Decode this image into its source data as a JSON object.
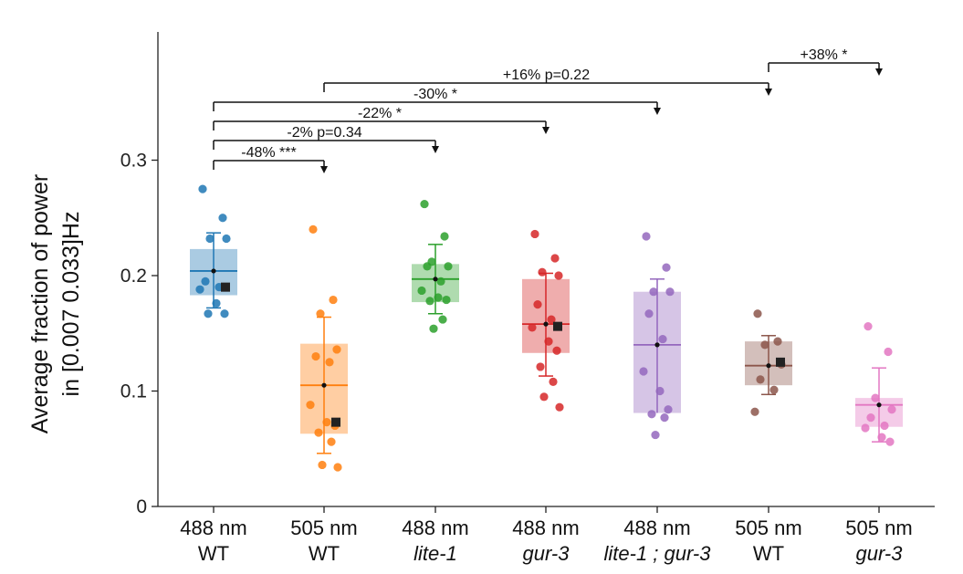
{
  "chart_data": {
    "type": "box",
    "title": "",
    "ylabel_line1": "Average fraction of power",
    "ylabel_line2": "in [0.007 0.033]Hz",
    "xlabel": "",
    "ylim": [
      0,
      0.4
    ],
    "yticks": [
      {
        "value": 0,
        "label": "0"
      },
      {
        "value": 0.1,
        "label": "0.1"
      },
      {
        "value": 0.2,
        "label": "0.2"
      },
      {
        "value": 0.3,
        "label": "0.3"
      }
    ],
    "groups": [
      {
        "label_top": "488 nm",
        "label_bottom": "WT",
        "italic": false,
        "color": "#1f77b4",
        "box_low": 0.183,
        "box_high": 0.223,
        "median": 0.204,
        "mean": 0.204,
        "whisker_low": 0.172,
        "whisker_high": 0.237,
        "square": 0.19,
        "points": [
          0.275,
          0.25,
          0.232,
          0.232,
          0.195,
          0.19,
          0.188,
          0.176,
          0.167,
          0.167
        ]
      },
      {
        "label_top": "505 nm",
        "label_bottom": "WT",
        "italic": false,
        "color": "#ff7f0e",
        "box_low": 0.063,
        "box_high": 0.141,
        "median": 0.105,
        "mean": 0.105,
        "whisker_low": 0.046,
        "whisker_high": 0.164,
        "square": 0.073,
        "points": [
          0.24,
          0.179,
          0.167,
          0.136,
          0.13,
          0.125,
          0.088,
          0.073,
          0.07,
          0.064,
          0.056,
          0.036,
          0.034
        ]
      },
      {
        "label_top": "488 nm",
        "label_bottom": "lite-1",
        "italic": true,
        "color": "#2ca02c",
        "box_low": 0.177,
        "box_high": 0.21,
        "median": 0.197,
        "mean": 0.197,
        "whisker_low": 0.167,
        "whisker_high": 0.227,
        "square": null,
        "points": [
          0.262,
          0.234,
          0.212,
          0.208,
          0.208,
          0.195,
          0.187,
          0.181,
          0.179,
          0.178,
          0.162,
          0.154
        ]
      },
      {
        "label_top": "488 nm",
        "label_bottom": "gur-3",
        "italic": true,
        "color": "#d62728",
        "box_low": 0.133,
        "box_high": 0.197,
        "median": 0.158,
        "mean": 0.158,
        "whisker_low": 0.113,
        "whisker_high": 0.202,
        "square": 0.156,
        "points": [
          0.236,
          0.215,
          0.203,
          0.2,
          0.175,
          0.162,
          0.155,
          0.143,
          0.135,
          0.121,
          0.108,
          0.095,
          0.086
        ]
      },
      {
        "label_top": "488 nm",
        "label_bottom": "lite-1 ; gur-3",
        "italic": true,
        "color": "#9467bd",
        "box_low": 0.081,
        "box_high": 0.186,
        "median": 0.14,
        "mean": 0.14,
        "whisker_low": null,
        "whisker_high": 0.197,
        "square": null,
        "points": [
          0.234,
          0.207,
          0.186,
          0.186,
          0.167,
          0.145,
          0.117,
          0.1,
          0.084,
          0.08,
          0.077,
          0.062
        ]
      },
      {
        "label_top": "505 nm",
        "label_bottom": "WT",
        "italic": false,
        "color": "#8c564b",
        "box_low": 0.105,
        "box_high": 0.143,
        "median": 0.122,
        "mean": 0.122,
        "whisker_low": 0.097,
        "whisker_high": 0.148,
        "square": 0.125,
        "points": [
          0.167,
          0.143,
          0.14,
          0.123,
          0.11,
          0.101,
          0.082
        ]
      },
      {
        "label_top": "505 nm",
        "label_bottom": "gur-3",
        "italic": true,
        "color": "#e377c2",
        "box_low": 0.069,
        "box_high": 0.094,
        "median": 0.088,
        "mean": 0.088,
        "whisker_low": 0.056,
        "whisker_high": 0.12,
        "square": null,
        "points": [
          0.156,
          0.134,
          0.094,
          0.084,
          0.077,
          0.07,
          0.068,
          0.06,
          0.056
        ]
      }
    ],
    "annotations": [
      {
        "text": "-48% ***",
        "from": 0,
        "to": 1,
        "level": 0
      },
      {
        "text": "-2% p=0.34",
        "from": 0,
        "to": 2,
        "level": 1
      },
      {
        "text": "-22% *",
        "from": 0,
        "to": 3,
        "level": 2
      },
      {
        "text": "-30% *",
        "from": 0,
        "to": 4,
        "level": 3
      },
      {
        "text": "+16% p=0.22",
        "from": 1,
        "to": 5,
        "level": 4
      },
      {
        "text": "+38% *",
        "from": 5,
        "to": 6,
        "level": 5
      }
    ]
  }
}
